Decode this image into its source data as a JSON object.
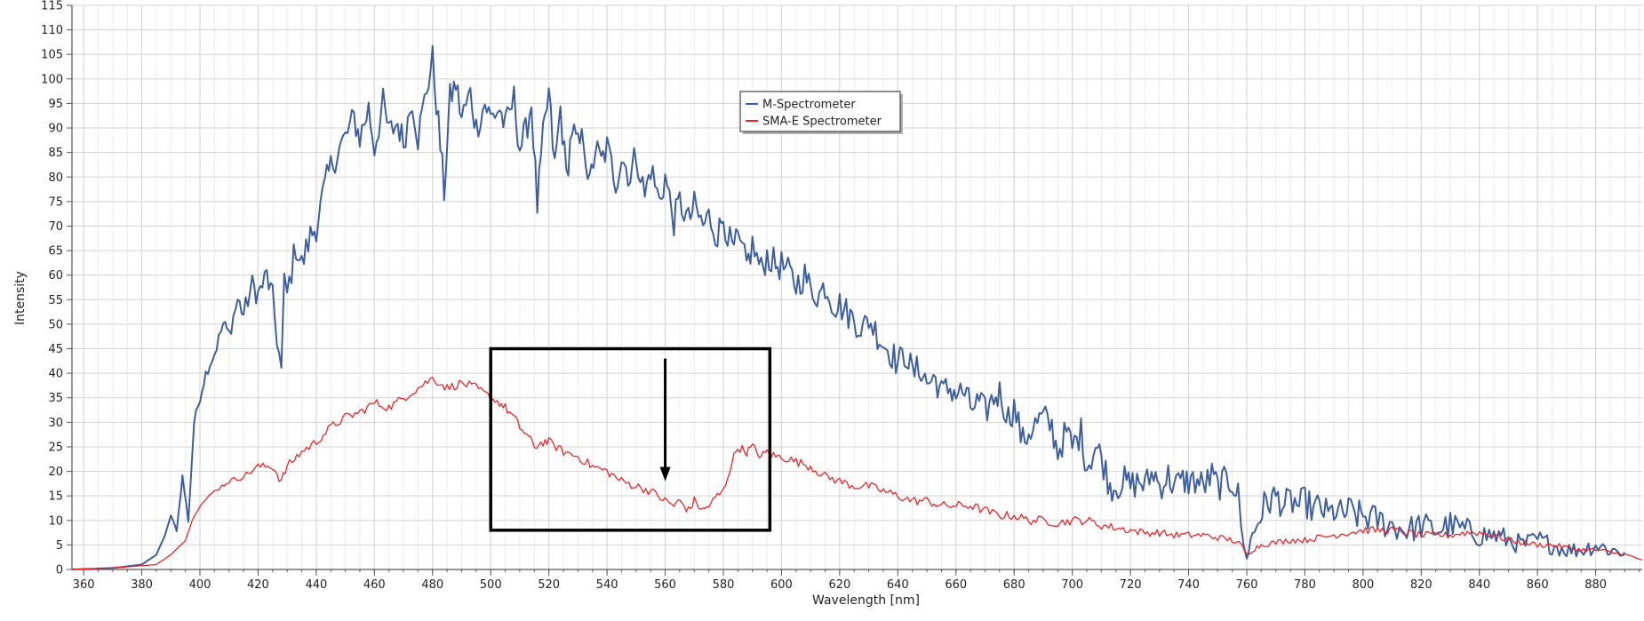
{
  "chart_data": {
    "type": "line",
    "title": "",
    "xlabel": "Wavelength [nm]",
    "ylabel": "Intensity",
    "xlim": [
      356,
      896
    ],
    "ylim": [
      0,
      115
    ],
    "x_ticks": [
      360,
      380,
      400,
      420,
      440,
      460,
      480,
      500,
      520,
      540,
      560,
      580,
      600,
      620,
      640,
      660,
      680,
      700,
      720,
      740,
      760,
      780,
      800,
      820,
      840,
      860,
      880
    ],
    "y_ticks": [
      0,
      5,
      10,
      15,
      20,
      25,
      30,
      35,
      40,
      45,
      50,
      55,
      60,
      65,
      70,
      75,
      80,
      85,
      90,
      95,
      100,
      105,
      110,
      115
    ],
    "grid": true,
    "legend_position": "top-center",
    "series": [
      {
        "name": "M-Spectrometer",
        "color": "#3e5f9e",
        "x": [
          356,
          370,
          380,
          385,
          388,
          390,
          392,
          394,
          396,
          398,
          400,
          402,
          405,
          408,
          410,
          413,
          415,
          418,
          420,
          423,
          425,
          428,
          429,
          430,
          433,
          435,
          438,
          440,
          443,
          445,
          448,
          450,
          453,
          455,
          458,
          460,
          463,
          465,
          468,
          470,
          473,
          475,
          478,
          480,
          482,
          484,
          486,
          488,
          490,
          493,
          495,
          498,
          500,
          503,
          505,
          508,
          510,
          512,
          514,
          516,
          518,
          520,
          522,
          524,
          526,
          528,
          530,
          532,
          534,
          536,
          538,
          540,
          543,
          545,
          548,
          550,
          553,
          555,
          558,
          560,
          563,
          565,
          568,
          570,
          573,
          575,
          578,
          580,
          583,
          585,
          588,
          590,
          593,
          595,
          598,
          600,
          603,
          605,
          608,
          610,
          613,
          615,
          618,
          620,
          623,
          625,
          628,
          630,
          633,
          635,
          638,
          640,
          643,
          645,
          648,
          650,
          653,
          655,
          658,
          660,
          663,
          665,
          668,
          670,
          673,
          675,
          678,
          680,
          683,
          685,
          688,
          690,
          693,
          695,
          698,
          700,
          703,
          705,
          708,
          710,
          713,
          715,
          718,
          720,
          723,
          725,
          728,
          730,
          733,
          735,
          738,
          740,
          743,
          745,
          748,
          750,
          753,
          755,
          757,
          758,
          759,
          760,
          762,
          764,
          766,
          768,
          770,
          773,
          775,
          778,
          780,
          783,
          785,
          788,
          790,
          793,
          795,
          798,
          800,
          805,
          810,
          815,
          820,
          825,
          830,
          835,
          840,
          845,
          850,
          855,
          860,
          865,
          870,
          875,
          880,
          885,
          890
        ],
        "values": [
          0,
          0.3,
          1,
          3,
          7,
          11,
          8,
          19,
          10,
          30,
          35,
          40,
          44,
          50,
          48,
          55,
          52,
          58,
          56,
          60,
          55,
          40,
          58,
          56,
          66,
          62,
          68,
          70,
          78,
          82,
          86,
          88,
          92,
          88,
          94,
          86,
          95,
          89,
          91,
          87,
          96,
          88,
          98,
          104,
          91,
          77,
          96,
          99,
          92,
          97,
          90,
          95,
          92,
          94,
          90,
          96,
          86,
          89,
          95,
          74,
          88,
          97,
          82,
          94,
          80,
          90,
          86,
          88,
          78,
          86,
          83,
          86,
          79,
          84,
          80,
          85,
          76,
          82,
          75,
          80,
          71,
          75,
          71,
          74,
          70,
          72,
          68,
          72,
          65,
          67,
          62,
          66,
          61,
          64,
          62,
          62,
          60,
          58,
          60,
          57,
          56,
          58,
          54,
          54,
          52,
          51,
          49,
          51,
          48,
          46,
          44,
          42,
          44,
          40,
          41,
          38,
          39,
          36,
          37,
          36,
          36,
          33,
          34,
          32,
          35,
          36,
          31,
          33,
          26,
          28,
          30,
          31,
          29,
          24,
          28,
          25,
          28,
          21,
          25,
          23,
          17,
          17,
          18,
          17,
          18,
          17,
          20,
          17,
          19,
          17,
          18,
          18,
          18,
          17,
          19,
          17,
          18,
          18,
          15,
          10,
          4,
          3,
          7,
          10,
          13,
          14,
          15,
          13,
          14,
          13,
          14,
          12,
          13,
          11,
          12,
          11,
          12,
          11,
          11,
          10,
          9,
          8,
          9,
          8,
          9,
          8,
          7,
          7,
          6,
          5,
          6,
          5,
          4,
          4,
          5,
          4,
          3.5
        ]
      },
      {
        "name": "SMA-E Spectrometer",
        "color": "#e8262a",
        "x": [
          356,
          370,
          385,
          390,
          395,
          398,
          400,
          405,
          410,
          415,
          420,
          425,
          428,
          430,
          435,
          440,
          445,
          450,
          455,
          460,
          465,
          470,
          475,
          480,
          485,
          490,
          495,
          500,
          503,
          505,
          508,
          510,
          513,
          515,
          518,
          520,
          525,
          530,
          535,
          540,
          545,
          550,
          555,
          560,
          563,
          565,
          568,
          570,
          573,
          575,
          578,
          580,
          583,
          585,
          588,
          590,
          593,
          595,
          598,
          600,
          605,
          610,
          615,
          620,
          625,
          630,
          635,
          640,
          645,
          650,
          655,
          660,
          665,
          670,
          675,
          680,
          685,
          690,
          695,
          700,
          705,
          710,
          715,
          720,
          725,
          730,
          735,
          740,
          745,
          750,
          755,
          758,
          760,
          762,
          765,
          770,
          775,
          780,
          785,
          790,
          795,
          800,
          805,
          810,
          815,
          820,
          825,
          830,
          835,
          840,
          845,
          850,
          855,
          860,
          865,
          870,
          875,
          880,
          885,
          890,
          896
        ],
        "values": [
          0,
          0.3,
          1,
          3,
          6,
          11,
          13,
          16,
          18,
          19,
          21,
          21,
          18,
          21,
          24,
          26,
          29,
          31,
          32,
          34,
          33,
          35,
          37,
          39,
          37,
          38,
          37,
          35,
          34,
          33,
          31,
          29,
          27,
          25,
          26,
          26,
          24,
          23,
          21,
          20,
          18,
          17,
          16,
          14,
          13,
          14,
          12,
          14,
          12,
          13,
          15,
          16,
          22,
          25,
          24,
          25,
          23,
          24,
          23,
          23,
          22,
          21,
          19,
          18,
          17,
          17,
          16,
          15,
          14,
          14,
          13,
          13,
          13,
          12,
          11,
          11,
          10,
          10,
          9.5,
          10,
          10,
          9,
          8.5,
          8,
          7.5,
          7.5,
          7,
          7,
          7,
          6.5,
          6,
          5,
          3,
          4,
          5,
          5.5,
          6,
          6,
          6.5,
          7,
          7.5,
          8,
          8,
          8,
          7.5,
          7,
          7,
          7,
          7.5,
          7.5,
          7,
          6,
          5.5,
          5,
          5,
          4.5,
          4,
          4,
          3.5,
          3,
          2
        ]
      }
    ],
    "annotations": [
      {
        "type": "rectangle",
        "x_range": [
          500,
          596
        ],
        "y_range": [
          8,
          45
        ]
      },
      {
        "type": "arrow",
        "x": 560,
        "from_y": 43,
        "to_y": 18
      }
    ]
  }
}
